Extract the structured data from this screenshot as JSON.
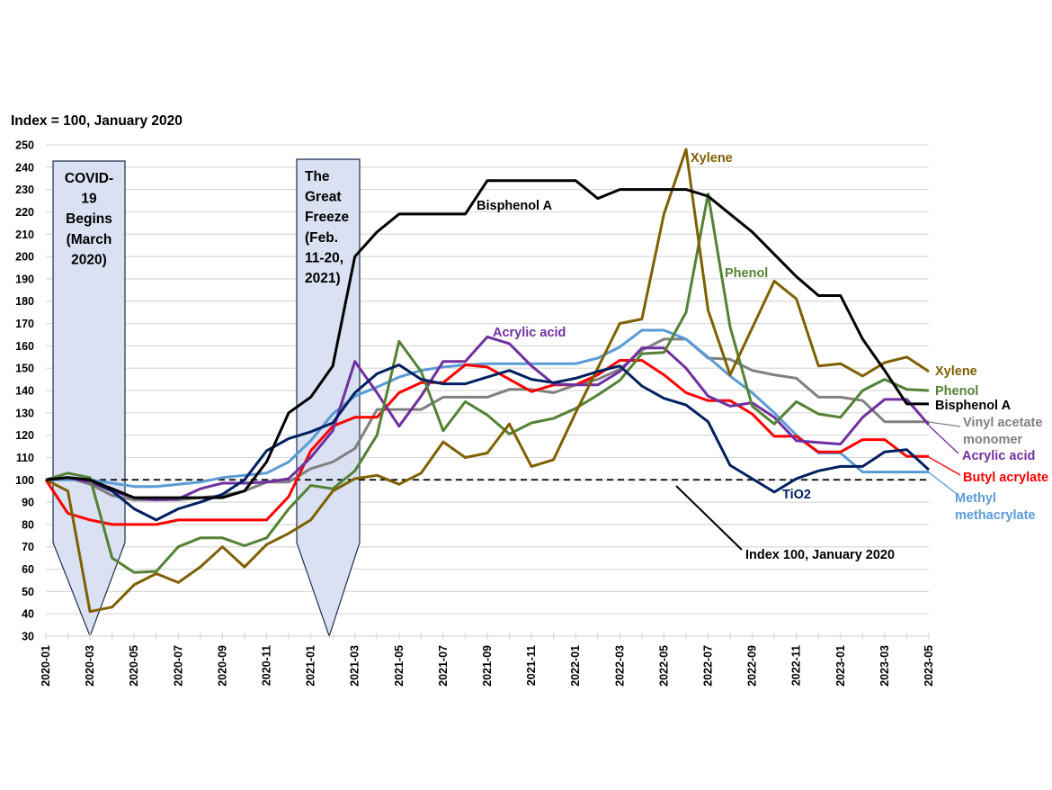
{
  "chart_data": {
    "type": "line",
    "title": "Index = 100, January 2020",
    "xlabel": "",
    "ylabel": "",
    "ylim": [
      30,
      250
    ],
    "yticks": [
      30,
      40,
      50,
      60,
      70,
      80,
      90,
      100,
      110,
      120,
      130,
      140,
      150,
      160,
      170,
      180,
      190,
      200,
      210,
      220,
      230,
      240,
      250
    ],
    "grid": true,
    "x": [
      "2020-01",
      "2020-02",
      "2020-03",
      "2020-04",
      "2020-05",
      "2020-06",
      "2020-07",
      "2020-08",
      "2020-09",
      "2020-10",
      "2020-11",
      "2020-12",
      "2021-01",
      "2021-02",
      "2021-03",
      "2021-04",
      "2021-05",
      "2021-06",
      "2021-07",
      "2021-08",
      "2021-09",
      "2021-10",
      "2021-11",
      "2021-12",
      "2022-01",
      "2022-02",
      "2022-03",
      "2022-04",
      "2022-05",
      "2022-06",
      "2022-07",
      "2022-08",
      "2022-09",
      "2022-10",
      "2022-11",
      "2022-12",
      "2023-01",
      "2023-02",
      "2023-03",
      "2023-04",
      "2023-05"
    ],
    "xtick_labels": [
      "2020-01",
      "2020-03",
      "2020-05",
      "2020-07",
      "2020-09",
      "2020-11",
      "2021-01",
      "2021-03",
      "2021-05",
      "2021-07",
      "2021-09",
      "2021-11",
      "2022-01",
      "2022-03",
      "2022-05",
      "2022-07",
      "2022-09",
      "2022-11",
      "2023-01",
      "2023-03",
      "2023-05"
    ],
    "series": [
      {
        "name": "Vinyl acetate monomer",
        "color": "#808080",
        "values": [
          100,
          101,
          98,
          93,
          91,
          91,
          91,
          92,
          93,
          95,
          99,
          99,
          105,
          108,
          114,
          131.5,
          131.5,
          131.5,
          137,
          137,
          137,
          140.5,
          140.5,
          139,
          142.5,
          145,
          149.5,
          158,
          163,
          163,
          154.5,
          154,
          149,
          147,
          145.5,
          137,
          137,
          135.5,
          126,
          126,
          126
        ]
      },
      {
        "name": "Methyl methacrylate",
        "color": "#5B9BD5",
        "values": [
          100,
          100,
          100,
          98.5,
          97,
          97,
          98,
          99,
          101,
          102,
          103,
          108,
          117.5,
          129.5,
          137.5,
          141.5,
          146,
          149,
          150.5,
          151.5,
          152,
          152,
          152,
          152,
          152,
          154.5,
          159.5,
          167,
          167,
          163,
          155,
          146.5,
          139,
          130,
          120,
          112,
          112,
          103.5,
          103.5,
          103.5,
          103.5
        ]
      },
      {
        "name": "Butyl acrylate",
        "color": "#FF0000",
        "values": [
          100,
          85,
          82,
          80,
          80,
          80,
          82,
          82,
          82,
          82,
          82,
          92.5,
          113,
          124,
          128,
          128,
          139,
          143.5,
          143.5,
          151.5,
          150.5,
          145,
          139.5,
          142.5,
          142.5,
          147,
          153.5,
          153.5,
          147,
          139,
          135.5,
          135.5,
          129.5,
          119.5,
          119.5,
          112.5,
          112.5,
          118,
          118,
          110.5,
          110.5
        ]
      },
      {
        "name": "Acrylic acid",
        "color": "#7030A0",
        "values": [
          100,
          101,
          99,
          95,
          92,
          91,
          91.5,
          96,
          98.5,
          98.5,
          99,
          100.5,
          110,
          122,
          153,
          139,
          124,
          137.5,
          153,
          153,
          164,
          161,
          151,
          143,
          142.5,
          142.5,
          148.5,
          159,
          159,
          150,
          137.5,
          133,
          134.5,
          128,
          117.5,
          116.7,
          116,
          128,
          136,
          136,
          124.6
        ]
      },
      {
        "name": "Phenol",
        "color": "#548235",
        "values": [
          100,
          103,
          101,
          65,
          58.5,
          59,
          70,
          74,
          74,
          70.5,
          74,
          87,
          97.5,
          96,
          104,
          120,
          162,
          148.5,
          122,
          135,
          129,
          120.5,
          125.5,
          127.5,
          132,
          138,
          144.5,
          156.5,
          157,
          175,
          228,
          168.5,
          133,
          125,
          135,
          129.5,
          128,
          140,
          145,
          140.5,
          140
        ]
      },
      {
        "name": "Xylene",
        "color": "#7F6000",
        "values": [
          100,
          95,
          41,
          43,
          53,
          58,
          54,
          61,
          70,
          61,
          71,
          76,
          82,
          95,
          100.5,
          102,
          98,
          103,
          117,
          110,
          112,
          125,
          106,
          109,
          130,
          150,
          170,
          172,
          219,
          248,
          176,
          147,
          168,
          189,
          181,
          151,
          152,
          146.5,
          152.5,
          155,
          148.5
        ]
      },
      {
        "name": "TiO2",
        "color": "#002060",
        "values": [
          100,
          101,
          100,
          95,
          87,
          82,
          87,
          90,
          93.5,
          100,
          113,
          118.5,
          121.5,
          125.5,
          139,
          147.5,
          151.5,
          145,
          143,
          143,
          146,
          149,
          145,
          143.5,
          145.5,
          148.5,
          151,
          142,
          136.5,
          133.5,
          126,
          106.5,
          100.5,
          94.5,
          100.5,
          104,
          106,
          106,
          112.5,
          113.5,
          104.5
        ]
      },
      {
        "name": "Bisphenol A",
        "color": "#000000",
        "values": [
          100,
          101,
          100,
          96,
          92,
          92,
          92,
          92,
          92,
          95,
          108,
          130,
          137,
          151,
          200,
          211,
          219,
          219,
          219,
          219,
          234,
          234,
          234,
          234,
          234,
          226,
          230,
          230,
          230,
          230,
          227,
          219,
          211,
          201,
          191,
          182.5,
          182.5,
          163,
          149,
          134,
          134
        ]
      }
    ],
    "reference_line": {
      "value": 100,
      "style": "dashed",
      "label": "Index 100, January 2020"
    },
    "annotations": [
      {
        "name": "covid",
        "lines": [
          "COVID-",
          "19",
          "Begins",
          "(March",
          "2020)"
        ],
        "points_to": "2020-03",
        "fill": "#D9E1F2"
      },
      {
        "name": "freeze",
        "lines": [
          "The",
          "Great",
          "Freeze",
          "(Feb.",
          "11-20,",
          "2021)"
        ],
        "points_to": "2021-02",
        "fill": "#D9E1F2"
      }
    ],
    "end_labels": [
      "Xylene",
      "Phenol",
      "Bisphenol A",
      "Vinyl acetate",
      "monomer",
      "Acrylic acid",
      "Butyl acrylate",
      "Methyl",
      "methacrylate"
    ],
    "inline_labels": [
      "Bisphenol A",
      "Acrylic acid",
      "Xylene",
      "Phenol",
      "TiO2"
    ]
  }
}
